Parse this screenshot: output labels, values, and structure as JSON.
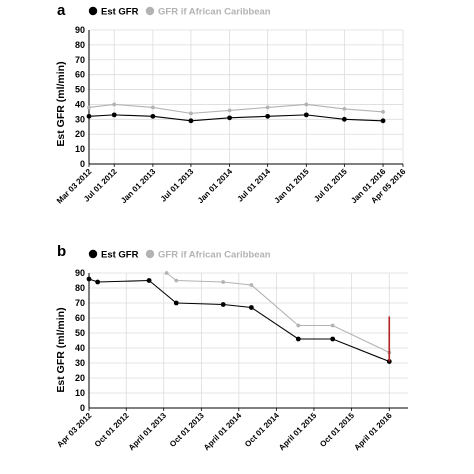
{
  "colors": {
    "est_gfr": "#000000",
    "gfr_african_caribbean": "#b3b3b3",
    "marker_line": "#b22222",
    "grid": "#dcdcdc",
    "axis": "#000000"
  },
  "chart_data": [
    {
      "panel": "a",
      "type": "line",
      "title": "",
      "xlabel": "",
      "ylabel": "Est GFR (ml/min)",
      "ylim": [
        0,
        90
      ],
      "yticks": [
        0,
        10,
        20,
        30,
        40,
        50,
        60,
        70,
        80,
        90
      ],
      "grid": true,
      "legend_position": "top",
      "xlim": [
        "2012-03-03",
        "2016-04-05"
      ],
      "x_tick_labels": [
        {
          "date": "2012-03-03",
          "label": "Mar 03 2012"
        },
        {
          "date": "2012-07-01",
          "label": "Jul 01 2012"
        },
        {
          "date": "2013-01-01",
          "label": "Jan 01 2013"
        },
        {
          "date": "2013-07-01",
          "label": "Jul 01 2013"
        },
        {
          "date": "2014-01-01",
          "label": "Jan 01 2014"
        },
        {
          "date": "2014-07-01",
          "label": "Jul 01 2014"
        },
        {
          "date": "2015-01-01",
          "label": "Jan 01 2015"
        },
        {
          "date": "2015-07-01",
          "label": "Jul 01 2015"
        },
        {
          "date": "2016-01-01",
          "label": "Jan 01 2016"
        },
        {
          "date": "2016-04-05",
          "label": "Apr 05 2016"
        }
      ],
      "series": [
        {
          "name": "Est GFR",
          "color_key": "est_gfr",
          "points": [
            {
              "x": "2012-03-03",
              "y": 32
            },
            {
              "x": "2012-07-01",
              "y": 33
            },
            {
              "x": "2013-01-01",
              "y": 32
            },
            {
              "x": "2013-07-01",
              "y": 29
            },
            {
              "x": "2014-01-01",
              "y": 31
            },
            {
              "x": "2014-07-01",
              "y": 32
            },
            {
              "x": "2015-01-01",
              "y": 33
            },
            {
              "x": "2015-07-01",
              "y": 30
            },
            {
              "x": "2016-01-01",
              "y": 29
            }
          ]
        },
        {
          "name": "GFR if African Caribbean",
          "color_key": "gfr_african_caribbean",
          "points": [
            {
              "x": "2012-03-03",
              "y": 38
            },
            {
              "x": "2012-07-01",
              "y": 40
            },
            {
              "x": "2013-01-01",
              "y": 38
            },
            {
              "x": "2013-07-01",
              "y": 34
            },
            {
              "x": "2014-01-01",
              "y": 36
            },
            {
              "x": "2014-07-01",
              "y": 38
            },
            {
              "x": "2015-01-01",
              "y": 40
            },
            {
              "x": "2015-07-01",
              "y": 37
            },
            {
              "x": "2016-01-01",
              "y": 35
            }
          ]
        }
      ]
    },
    {
      "panel": "b",
      "type": "line",
      "title": "",
      "xlabel": "",
      "ylabel": "Est GFR (ml/min)",
      "ylim": [
        0,
        90
      ],
      "yticks": [
        0,
        10,
        20,
        30,
        40,
        50,
        60,
        70,
        80,
        90
      ],
      "grid": true,
      "legend_position": "top",
      "xlim": [
        "2012-04-03",
        "2016-07-01"
      ],
      "x_tick_labels": [
        {
          "date": "2012-04-03",
          "label": "Apr 03 2012"
        },
        {
          "date": "2012-10-01",
          "label": "Oct 01 2012"
        },
        {
          "date": "2013-04-01",
          "label": "April 01 2013"
        },
        {
          "date": "2013-10-01",
          "label": "Oct 01 2013"
        },
        {
          "date": "2014-04-01",
          "label": "April 01 2014"
        },
        {
          "date": "2014-10-01",
          "label": "Oct 01 2014"
        },
        {
          "date": "2015-04-01",
          "label": "April 01 2015"
        },
        {
          "date": "2015-10-01",
          "label": "Oct 01 2015"
        },
        {
          "date": "2016-04-01",
          "label": "April 01 2016"
        }
      ],
      "series": [
        {
          "name": "Est GFR",
          "color_key": "est_gfr",
          "points": [
            {
              "x": "2012-04-03",
              "y": 86
            },
            {
              "x": "2012-05-15",
              "y": 84
            },
            {
              "x": "2013-01-20",
              "y": 85
            },
            {
              "x": "2013-06-01",
              "y": 70
            },
            {
              "x": "2014-01-15",
              "y": 69
            },
            {
              "x": "2014-06-01",
              "y": 67
            },
            {
              "x": "2015-01-15",
              "y": 46
            },
            {
              "x": "2015-07-01",
              "y": 46
            },
            {
              "x": "2016-04-01",
              "y": 31
            }
          ]
        },
        {
          "name": "GFR if African Caribbean",
          "color_key": "gfr_african_caribbean",
          "points": [
            {
              "x": "2013-04-15",
              "y": 90
            },
            {
              "x": "2013-06-01",
              "y": 85
            },
            {
              "x": "2014-01-15",
              "y": 84
            },
            {
              "x": "2014-06-01",
              "y": 82
            },
            {
              "x": "2015-01-15",
              "y": 55
            },
            {
              "x": "2015-07-01",
              "y": 55
            },
            {
              "x": "2016-04-01",
              "y": 37
            }
          ]
        }
      ],
      "vertical_marker": {
        "x": "2016-04-01",
        "y_from": 31,
        "y_to": 61,
        "color_key": "marker_line"
      }
    }
  ]
}
